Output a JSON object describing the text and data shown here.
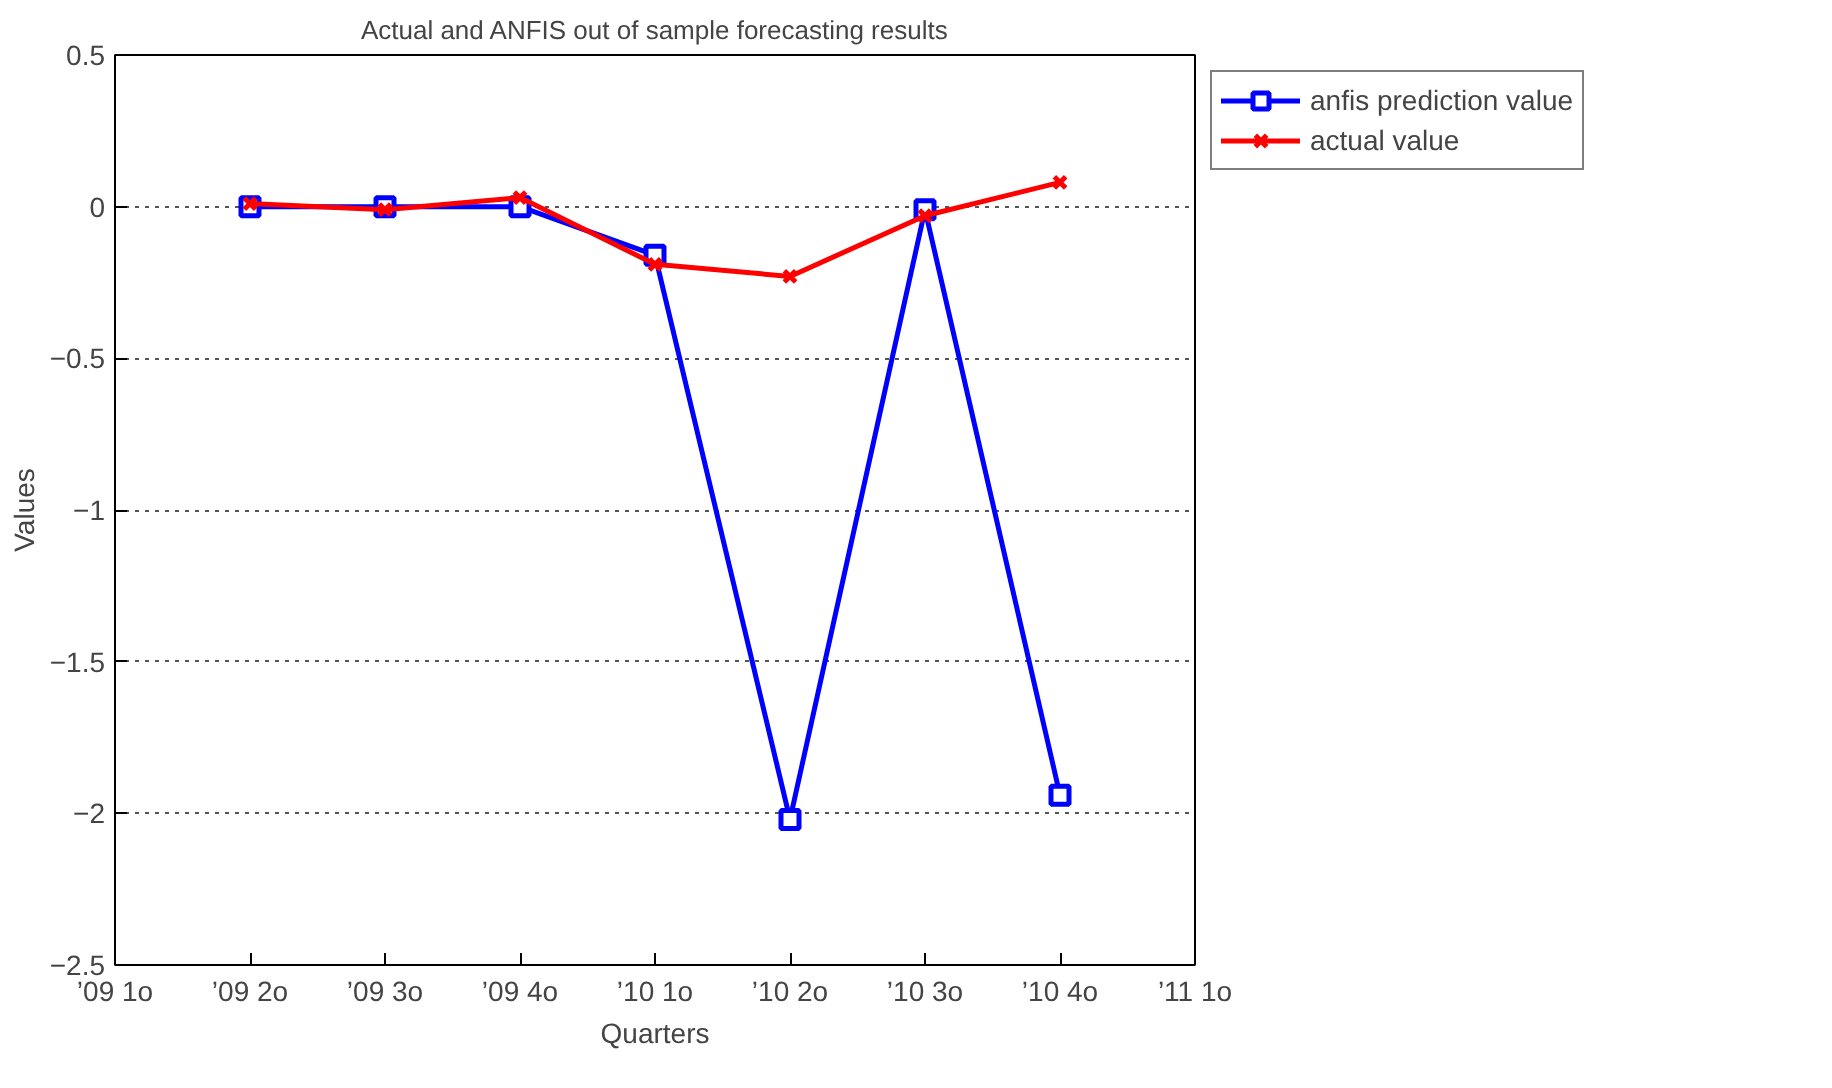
{
  "chart_data": {
    "type": "line",
    "title": "Actual and ANFIS out of sample forecasting results",
    "xlabel": "Quarters",
    "ylabel": "Values",
    "categories": [
      "’09 1o",
      "’09 2o",
      "’09 3o",
      "’09 4o",
      "’10 1o",
      "’10 2o",
      "’10 3o",
      "’10 4o",
      "’11 1o"
    ],
    "series": [
      {
        "name": "anfis prediction value",
        "color": "#0000ff",
        "marker": "square",
        "values": [
          null,
          0,
          0,
          0,
          -0.16,
          -2.02,
          -0.01,
          -1.94,
          null
        ]
      },
      {
        "name": "actual value",
        "color": "#ff0000",
        "marker": "cross",
        "values": [
          null,
          0.01,
          -0.01,
          0.03,
          -0.19,
          -0.23,
          -0.03,
          0.08,
          null
        ]
      }
    ],
    "ylim": [
      -2.5,
      0.5
    ],
    "yticks": [
      {
        "value": -2.5,
        "label": "−2.5"
      },
      {
        "value": -2,
        "label": "−2"
      },
      {
        "value": -1.5,
        "label": "−1.5"
      },
      {
        "value": -1,
        "label": "−1"
      },
      {
        "value": -0.5,
        "label": "−0.5"
      },
      0,
      0.5
    ],
    "grid": "y",
    "legend": "top right",
    "line_style": "solid"
  }
}
